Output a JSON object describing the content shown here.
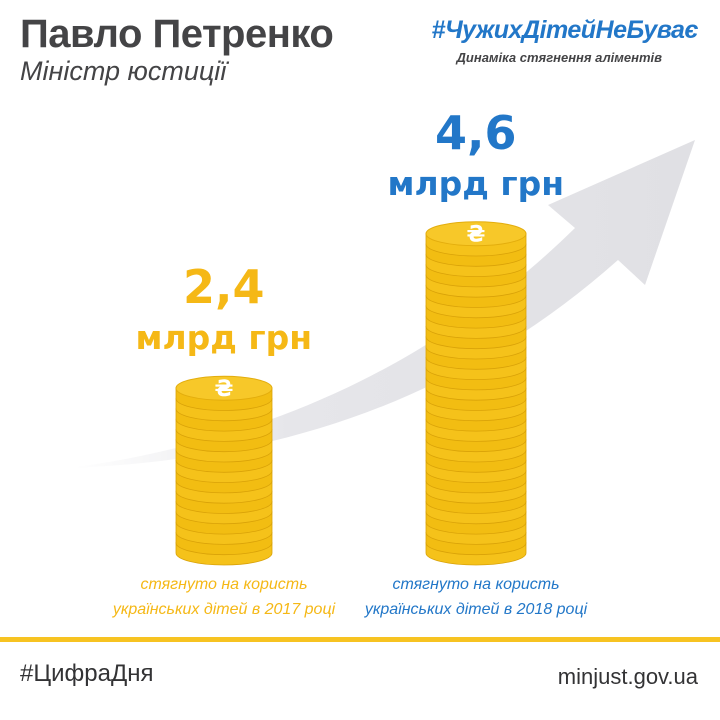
{
  "header": {
    "name": "Павло Петренко",
    "role": "Міністр юстиції",
    "hashtag": "#ЧужихДітейНеБуває",
    "subtitle": "Динаміка стягнення аліментів"
  },
  "chart_data": {
    "type": "bar",
    "categories": [
      "2017",
      "2018"
    ],
    "values": [
      2.4,
      4.6
    ],
    "value_labels": [
      "2,4",
      "4,6"
    ],
    "unit": "млрд грн",
    "coin_symbol": "₴",
    "captions": [
      [
        "стягнуто на користь",
        "українських дітей в 2017 році"
      ],
      [
        "стягнуто на користь",
        "українських дітей в 2018 році"
      ]
    ],
    "colors": [
      "#f5b816",
      "#2277c8"
    ],
    "coin_color": "#f7c829",
    "trend": "rising arrow"
  },
  "footer": {
    "tag": "#ЦифраДня",
    "site": "minjust.gov.ua"
  }
}
